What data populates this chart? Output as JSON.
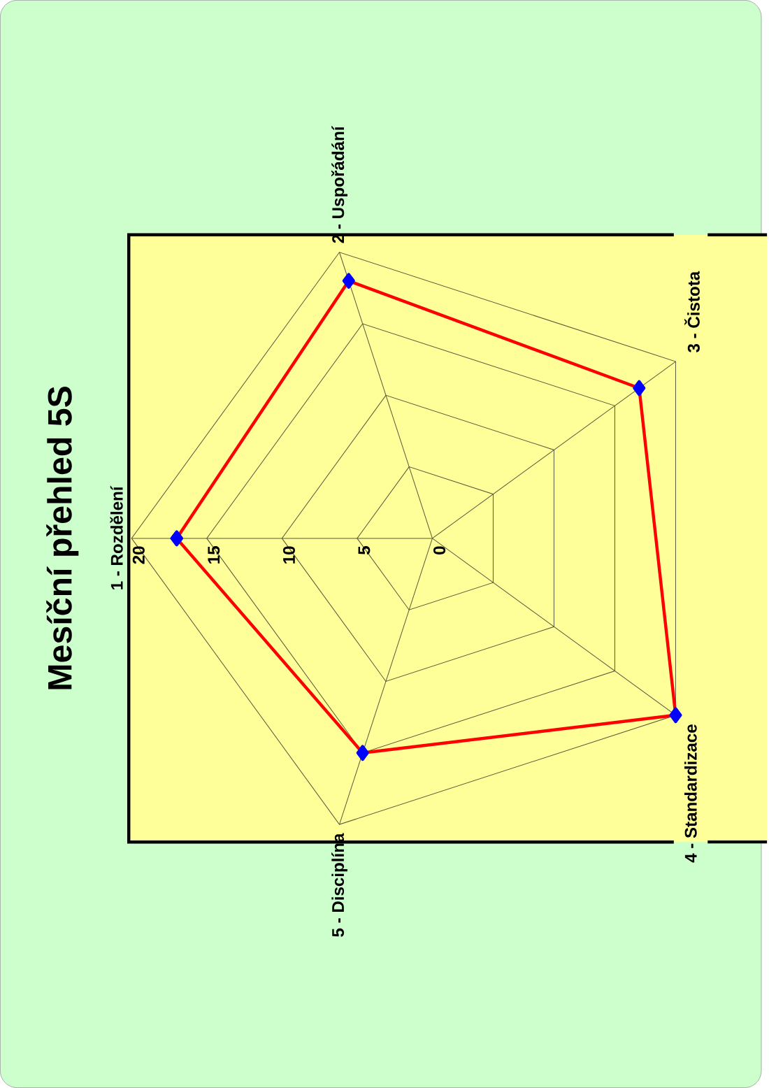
{
  "chart_data": {
    "type": "radar",
    "title": "Mesíční přehled 5S",
    "categories": [
      "1 - Rozdělení",
      "2 - Uspořádání",
      "3 - Čistota",
      "4 - Standardizace",
      "5 - Disciplína"
    ],
    "series": [
      {
        "color": "#ff0000",
        "values": [
          17,
          18,
          17,
          20,
          15
        ]
      }
    ],
    "ylim": [
      0,
      20
    ],
    "yticks": [
      0,
      5,
      10,
      15,
      20
    ],
    "grid": true,
    "marker": "diamond",
    "line_style": "solid"
  }
}
